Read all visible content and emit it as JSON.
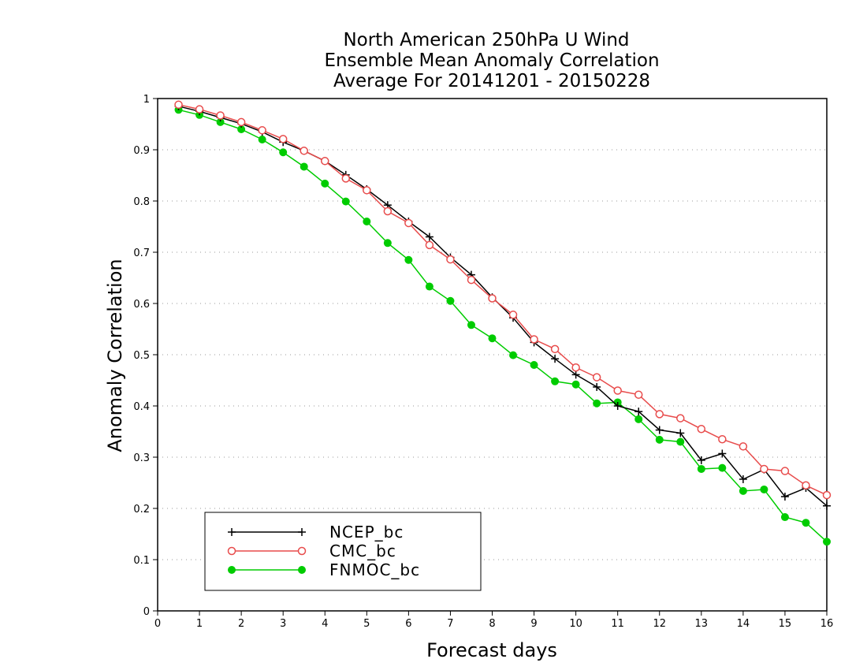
{
  "chart_data": {
    "type": "line",
    "title_lines": [
      "North American 250hPa U Wind",
      "Ensemble Mean Anomaly Correlation",
      "Average For 20141201 - 20150228"
    ],
    "xlabel": "Forecast days",
    "ylabel": "Anomaly Correlation",
    "xlim": [
      0,
      16
    ],
    "ylim": [
      0,
      1
    ],
    "xticks": [
      0,
      1,
      2,
      3,
      4,
      5,
      6,
      7,
      8,
      9,
      10,
      11,
      12,
      13,
      14,
      15,
      16
    ],
    "yticks": [
      0,
      0.1,
      0.2,
      0.3,
      0.4,
      0.5,
      0.6,
      0.7,
      0.8,
      0.9,
      1
    ],
    "grid": "horizontal dotted",
    "legend_position": "bottom-left",
    "x": [
      0.5,
      1,
      1.5,
      2,
      2.5,
      3,
      3.5,
      4,
      4.5,
      5,
      5.5,
      6,
      6.5,
      7,
      7.5,
      8,
      8.5,
      9,
      9.5,
      10,
      10.5,
      11,
      11.5,
      12,
      12.5,
      13,
      13.5,
      14,
      14.5,
      15,
      15.5,
      16
    ],
    "series": [
      {
        "name": "NCEP_bc",
        "color": "#000000",
        "marker": "plus",
        "values": [
          0.985,
          0.975,
          0.963,
          0.951,
          0.935,
          0.915,
          0.898,
          0.878,
          0.851,
          0.823,
          0.792,
          0.76,
          0.73,
          0.69,
          0.656,
          0.612,
          0.572,
          0.524,
          0.492,
          0.461,
          0.437,
          0.4,
          0.389,
          0.353,
          0.347,
          0.294,
          0.307,
          0.257,
          0.276,
          0.223,
          0.24,
          0.205
        ]
      },
      {
        "name": "CMC_bc",
        "color": "#e84c4c",
        "marker": "open-circle",
        "values": [
          0.988,
          0.979,
          0.967,
          0.954,
          0.938,
          0.921,
          0.898,
          0.878,
          0.844,
          0.821,
          0.78,
          0.757,
          0.714,
          0.686,
          0.646,
          0.61,
          0.578,
          0.53,
          0.511,
          0.475,
          0.456,
          0.43,
          0.422,
          0.384,
          0.376,
          0.355,
          0.335,
          0.321,
          0.277,
          0.273,
          0.245,
          0.226
        ]
      },
      {
        "name": "FNMOC_bc",
        "color": "#00cc00",
        "marker": "filled-circle",
        "values": [
          0.978,
          0.968,
          0.954,
          0.94,
          0.92,
          0.895,
          0.867,
          0.834,
          0.799,
          0.76,
          0.718,
          0.685,
          0.633,
          0.605,
          0.558,
          0.532,
          0.499,
          0.48,
          0.448,
          0.442,
          0.405,
          0.407,
          0.374,
          0.334,
          0.33,
          0.277,
          0.279,
          0.234,
          0.237,
          0.183,
          0.172,
          0.135
        ]
      }
    ]
  }
}
